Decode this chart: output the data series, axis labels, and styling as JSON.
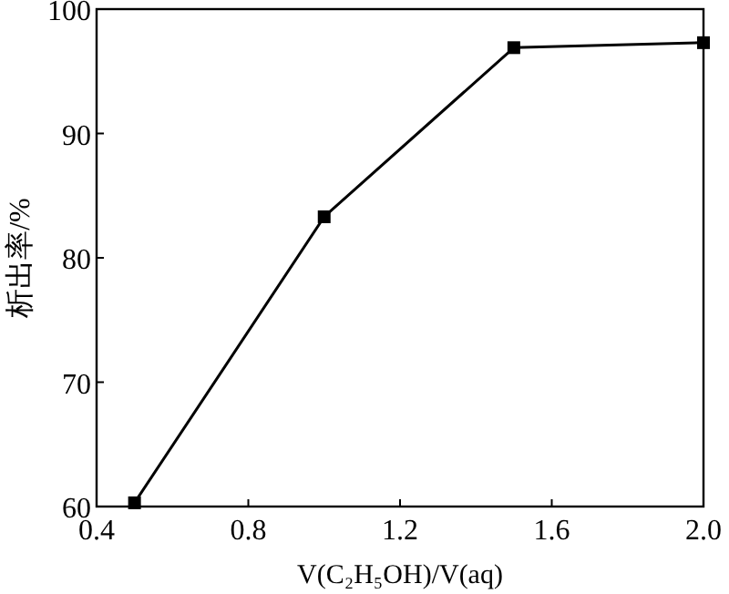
{
  "chart_data": {
    "type": "line",
    "xlabel": "V(C₂H₅OH)/V(aq)",
    "ylabel": "析出率/%",
    "x": [
      0.5,
      1.0,
      1.5,
      2.0
    ],
    "series": [
      {
        "color": "#000000",
        "values": [
          60.3,
          83.3,
          96.9,
          97.3
        ]
      }
    ],
    "xlim": [
      0.4,
      2.0
    ],
    "xticks": [
      {
        "value": 0.4,
        "label": "0.4"
      },
      {
        "value": 0.8,
        "label": "0.8"
      },
      {
        "value": 1.2,
        "label": "1.2"
      },
      {
        "value": 1.6,
        "label": "1.6"
      },
      {
        "value": 2.0,
        "label": "2.0"
      }
    ],
    "ylim": [
      60,
      100
    ],
    "yticks": [
      60,
      70,
      80,
      90,
      100
    ],
    "marker": "square",
    "line_style": "solid"
  }
}
